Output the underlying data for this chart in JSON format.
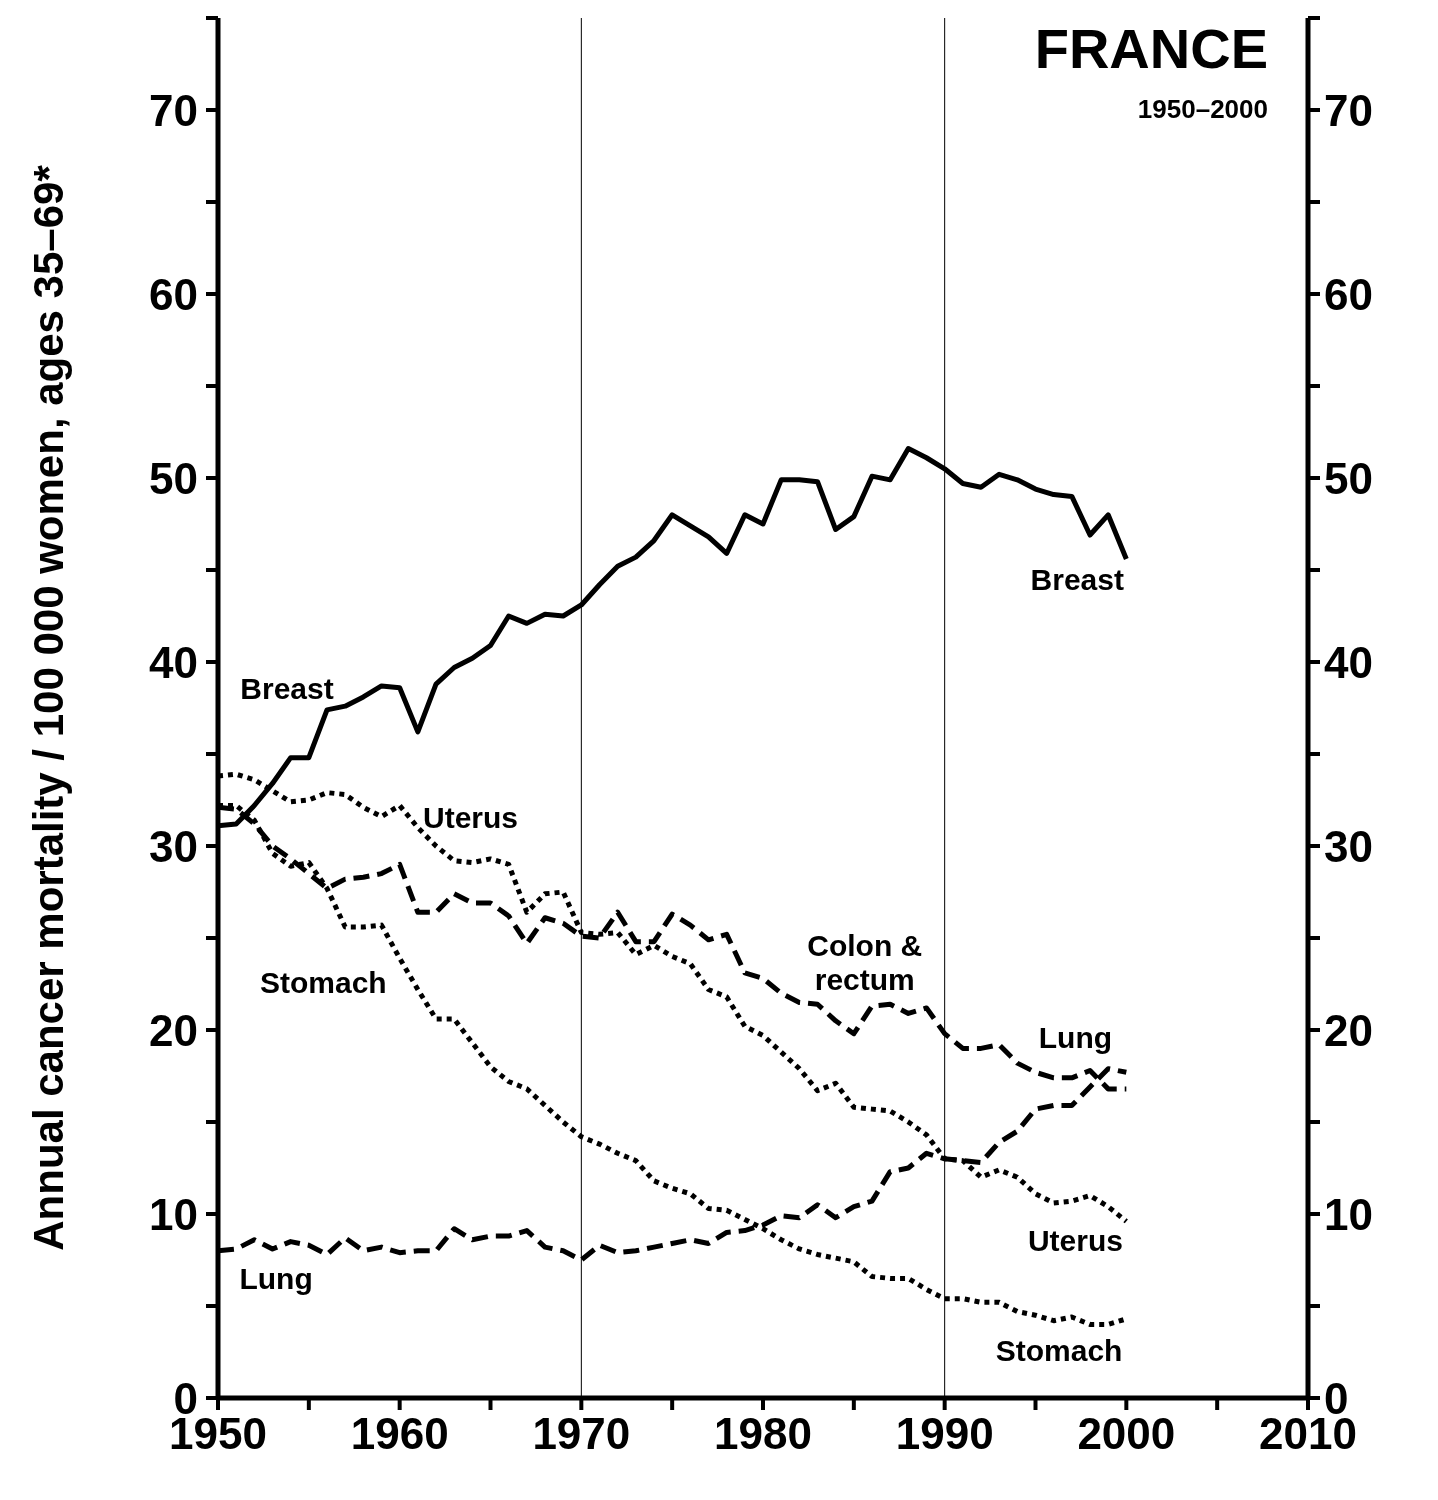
{
  "chart_data": {
    "type": "line",
    "title": "FRANCE",
    "subtitle": "1950–2000",
    "ylabel": "Annual cancer mortality / 100 000 women, ages 35–69*",
    "x": [
      1950,
      1951,
      1952,
      1953,
      1954,
      1955,
      1956,
      1957,
      1958,
      1959,
      1960,
      1961,
      1962,
      1963,
      1964,
      1965,
      1966,
      1967,
      1968,
      1969,
      1970,
      1971,
      1972,
      1973,
      1974,
      1975,
      1976,
      1977,
      1978,
      1979,
      1980,
      1981,
      1982,
      1983,
      1984,
      1985,
      1986,
      1987,
      1988,
      1989,
      1990,
      1991,
      1992,
      1993,
      1994,
      1995,
      1996,
      1997,
      1998,
      1999,
      2000
    ],
    "series": [
      {
        "name": "Breast",
        "color": "#000000",
        "line_style": "solid",
        "values": [
          31.1,
          31.2,
          32.2,
          33.4,
          34.8,
          34.8,
          37.4,
          37.6,
          38.1,
          38.7,
          38.6,
          36.2,
          38.8,
          39.7,
          40.2,
          40.9,
          42.5,
          42.1,
          42.6,
          42.5,
          43.1,
          44.2,
          45.2,
          45.7,
          46.6,
          48.0,
          47.4,
          46.8,
          45.9,
          48.0,
          47.5,
          49.9,
          49.9,
          49.8,
          47.2,
          47.9,
          50.1,
          49.9,
          51.6,
          51.1,
          50.5,
          49.7,
          49.5,
          50.2,
          49.9,
          49.4,
          49.1,
          49.0,
          46.9,
          48.0,
          45.6
        ]
      },
      {
        "name": "Uterus",
        "color": "#000000",
        "line_style": "dotted",
        "values": [
          33.8,
          33.9,
          33.6,
          33.0,
          32.4,
          32.5,
          32.9,
          32.8,
          32.1,
          31.6,
          32.2,
          31.0,
          30.0,
          29.2,
          29.1,
          29.3,
          29.0,
          26.4,
          27.4,
          27.5,
          25.3,
          25.2,
          25.3,
          24.1,
          24.6,
          24.0,
          23.6,
          22.2,
          21.8,
          20.2,
          19.7,
          18.8,
          17.9,
          16.7,
          17.1,
          15.8,
          15.7,
          15.6,
          15.0,
          14.3,
          13.0,
          12.9,
          12.0,
          12.4,
          12.0,
          11.1,
          10.6,
          10.7,
          11.0,
          10.4,
          9.6
        ]
      },
      {
        "name": "Colon & rectum",
        "color": "#000000",
        "line_style": "dashed",
        "values": [
          32.1,
          32.0,
          31.2,
          30.0,
          29.3,
          28.5,
          27.7,
          28.2,
          28.3,
          28.5,
          29.0,
          26.4,
          26.4,
          27.4,
          26.9,
          26.9,
          26.2,
          24.7,
          26.1,
          25.8,
          25.1,
          25.0,
          26.4,
          24.8,
          24.8,
          26.3,
          25.7,
          24.9,
          25.2,
          23.1,
          22.8,
          22.0,
          21.5,
          21.4,
          20.5,
          19.8,
          21.3,
          21.4,
          20.9,
          21.2,
          19.8,
          19.0,
          19.0,
          19.2,
          18.2,
          17.7,
          17.4,
          17.4,
          17.8,
          16.8,
          16.8
        ]
      },
      {
        "name": "Stomach",
        "color": "#000000",
        "line_style": "dotted",
        "values": [
          32.2,
          32.2,
          31.4,
          29.6,
          28.9,
          29.1,
          27.7,
          25.6,
          25.6,
          25.7,
          23.9,
          22.2,
          20.6,
          20.6,
          19.3,
          18.0,
          17.2,
          16.8,
          15.9,
          15.0,
          14.2,
          13.8,
          13.3,
          12.9,
          11.8,
          11.4,
          11.1,
          10.3,
          10.2,
          9.7,
          9.2,
          8.6,
          8.1,
          7.8,
          7.6,
          7.4,
          6.6,
          6.5,
          6.5,
          5.9,
          5.4,
          5.4,
          5.2,
          5.2,
          4.7,
          4.5,
          4.2,
          4.4,
          4.0,
          4.0,
          4.3
        ]
      },
      {
        "name": "Lung",
        "color": "#000000",
        "line_style": "dashed",
        "values": [
          8.0,
          8.1,
          8.6,
          8.1,
          8.5,
          8.3,
          7.8,
          8.7,
          8.0,
          8.2,
          7.9,
          8.0,
          8.0,
          9.2,
          8.6,
          8.8,
          8.8,
          9.1,
          8.2,
          8.0,
          7.5,
          8.3,
          7.9,
          8.0,
          8.2,
          8.4,
          8.6,
          8.4,
          9.0,
          9.1,
          9.4,
          9.9,
          9.8,
          10.5,
          9.8,
          10.4,
          10.7,
          12.3,
          12.5,
          13.3,
          13.0,
          12.9,
          12.8,
          13.9,
          14.5,
          15.7,
          15.9,
          15.9,
          16.9,
          17.9,
          17.7
        ]
      }
    ],
    "xlim": [
      1950,
      2010
    ],
    "xticks": [
      1950,
      {
        "value": 1955,
        "label": null
      },
      1960,
      {
        "value": 1965,
        "label": null
      },
      1970,
      {
        "value": 1975,
        "label": null
      },
      1980,
      {
        "value": 1985,
        "label": null
      },
      1990,
      {
        "value": 1995,
        "label": null
      },
      2000,
      {
        "value": 2005,
        "label": null
      },
      2010
    ],
    "ylim": [
      0,
      75
    ],
    "yticks": [
      0,
      {
        "value": 5,
        "label": null
      },
      10,
      {
        "value": 15,
        "label": null
      },
      20,
      {
        "value": 25,
        "label": null
      },
      30,
      {
        "value": 35,
        "label": null
      },
      40,
      {
        "value": 45,
        "label": null
      },
      50,
      {
        "value": 55,
        "label": null
      },
      60,
      {
        "value": 65,
        "label": null
      },
      70,
      {
        "value": 75,
        "label": null
      }
    ],
    "y2lim": [
      0,
      75
    ],
    "y2ticks": [
      0,
      {
        "value": 5,
        "label": null
      },
      10,
      {
        "value": 15,
        "label": null
      },
      20,
      {
        "value": 25,
        "label": null
      },
      30,
      {
        "value": 35,
        "label": null
      },
      40,
      {
        "value": 45,
        "label": null
      },
      50,
      {
        "value": 55,
        "label": null
      },
      60,
      {
        "value": 65,
        "label": null
      },
      70,
      {
        "value": 75,
        "label": null
      }
    ],
    "ref_lines": [
      {
        "axis": "x",
        "value": 1970
      },
      {
        "axis": "x",
        "value": 1990
      }
    ],
    "grid": false,
    "marker": "none"
  }
}
